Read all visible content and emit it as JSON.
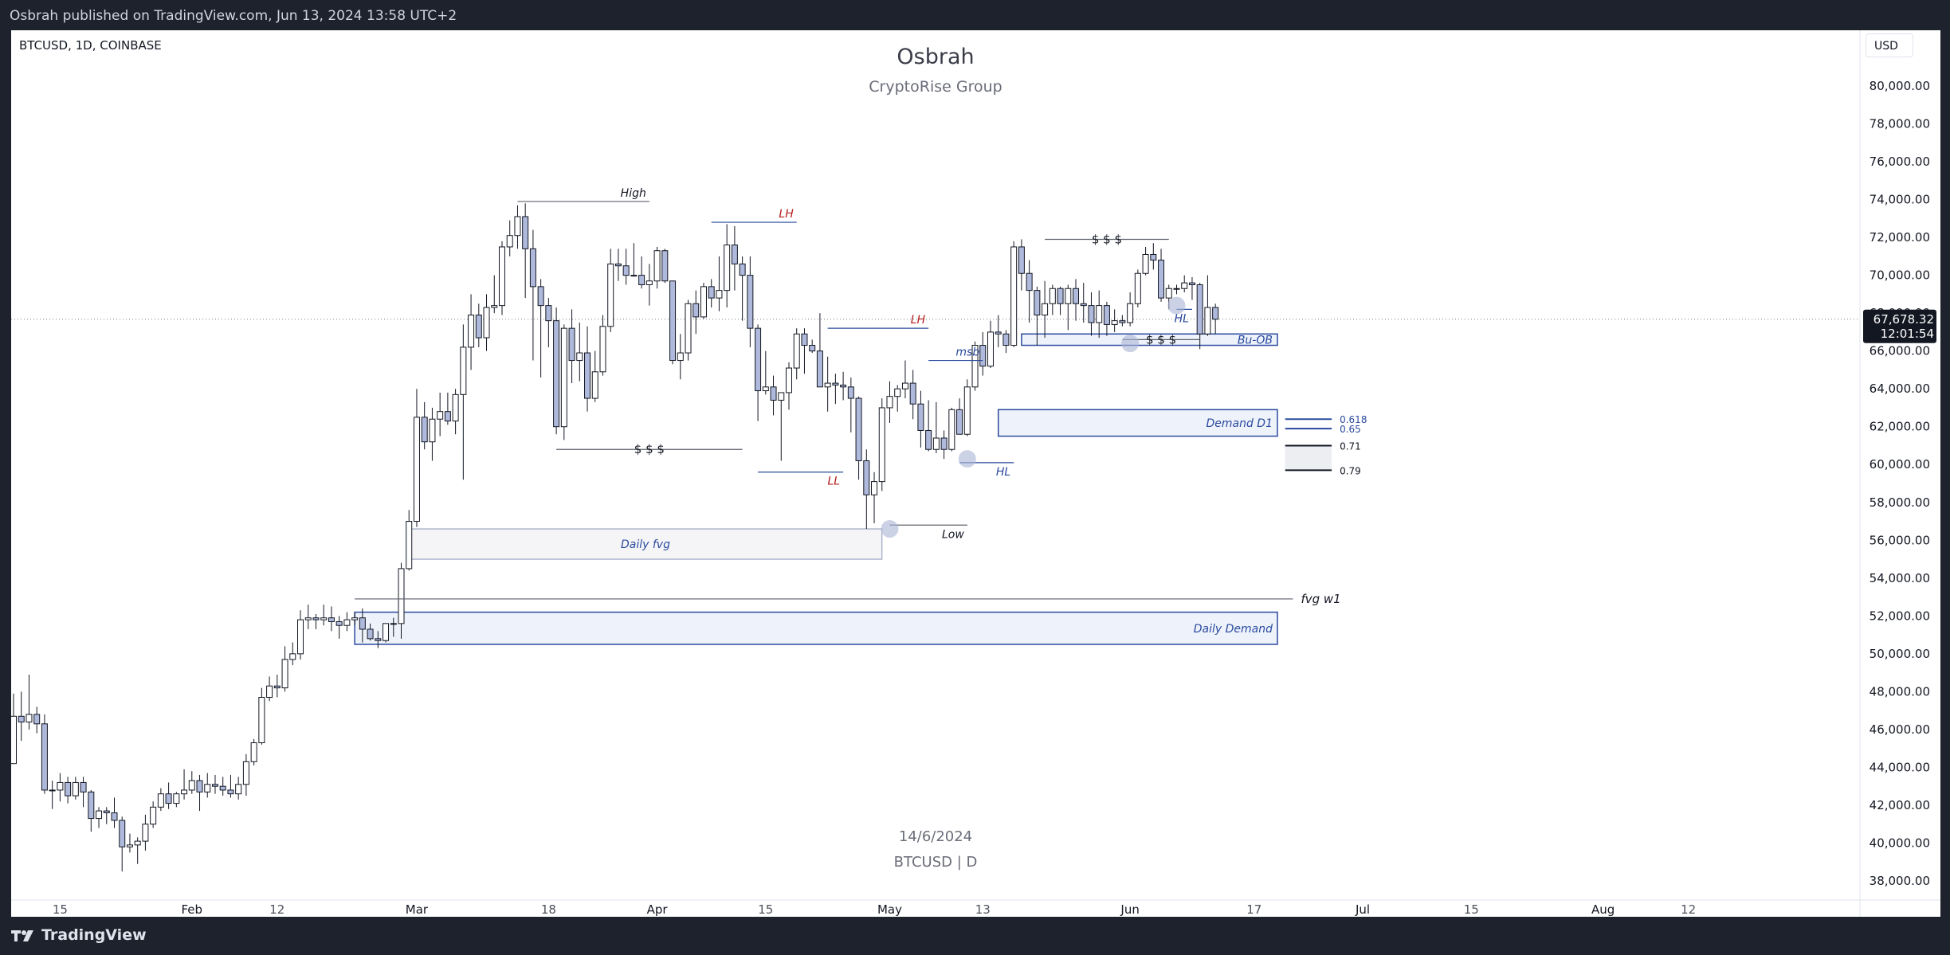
{
  "header": {
    "published": "Osbrah published on TradingView.com, Jun 13, 2024 13:58 UTC+2"
  },
  "footer": {
    "brand": "TradingView"
  },
  "chart_header": {
    "symbol_info": "BTCUSD, 1D, COINBASE",
    "currency": "USD"
  },
  "watermark": {
    "title": "Osbrah",
    "subtitle": "CryptoRise Group",
    "date": "14/6/2024",
    "symbol": "BTCUSD | D"
  },
  "price_axis_labels": [
    "80,000.00",
    "78,000.00",
    "76,000.00",
    "74,000.00",
    "72,000.00",
    "70,000.00",
    "68,000.00",
    "66,000.00",
    "64,000.00",
    "62,000.00",
    "60,000.00",
    "58,000.00",
    "56,000.00",
    "54,000.00",
    "52,000.00",
    "50,000.00",
    "48,000.00",
    "46,000.00",
    "44,000.00",
    "42,000.00",
    "40,000.00",
    "38,000.00"
  ],
  "price_levels": [
    80000,
    78000,
    76000,
    74000,
    72000,
    70000,
    68000,
    66000,
    64000,
    62000,
    60000,
    58000,
    56000,
    54000,
    52000,
    50000,
    48000,
    46000,
    44000,
    42000,
    40000,
    38000
  ],
  "time_axis": [
    {
      "label": "15",
      "date": "2024-01-15"
    },
    {
      "label": "Feb",
      "date": "2024-02-01"
    },
    {
      "label": "12",
      "date": "2024-02-12"
    },
    {
      "label": "Mar",
      "date": "2024-03-01"
    },
    {
      "label": "18",
      "date": "2024-03-18"
    },
    {
      "label": "Apr",
      "date": "2024-04-01"
    },
    {
      "label": "15",
      "date": "2024-04-15"
    },
    {
      "label": "May",
      "date": "2024-05-01"
    },
    {
      "label": "13",
      "date": "2024-05-13"
    },
    {
      "label": "Jun",
      "date": "2024-06-01"
    },
    {
      "label": "17",
      "date": "2024-06-17"
    },
    {
      "label": "Jul",
      "date": "2024-07-01"
    },
    {
      "label": "15",
      "date": "2024-07-15"
    },
    {
      "label": "Aug",
      "date": "2024-08-01"
    },
    {
      "label": "12",
      "date": "2024-08-12"
    }
  ],
  "last_price": {
    "value": "67,678.32",
    "countdown": "12:01:54",
    "price": 67678.32
  },
  "colors": {
    "zone_fill": "#eef2fb",
    "zone_border": "#2a4a9e",
    "label_blue": "#2a4a9e",
    "label_red": "#b71c1c",
    "candle_up": "#ffffff",
    "candle_down": "#aeb9dc",
    "candle_outline": "#131722"
  },
  "chart_data": {
    "type": "candlestick",
    "first_date": "2024-01-09",
    "y_range": [
      37200,
      81000
    ],
    "candles": [
      [
        44200,
        47900,
        44200,
        46700
      ],
      [
        46700,
        48000,
        45400,
        46400
      ],
      [
        46400,
        48900,
        46000,
        46800
      ],
      [
        46800,
        47200,
        45800,
        46300
      ],
      [
        46300,
        46800,
        42600,
        42800
      ],
      [
        42800,
        43300,
        41800,
        42800
      ],
      [
        42800,
        43700,
        42200,
        43200
      ],
      [
        43200,
        43500,
        42100,
        42500
      ],
      [
        42500,
        43500,
        42300,
        43200
      ],
      [
        43200,
        43500,
        41900,
        42700
      ],
      [
        42700,
        42800,
        40600,
        41300
      ],
      [
        41300,
        41900,
        40800,
        41700
      ],
      [
        41700,
        41900,
        41000,
        41600
      ],
      [
        41600,
        42400,
        40800,
        41200
      ],
      [
        41200,
        41400,
        38500,
        39800
      ],
      [
        39800,
        40500,
        39500,
        39900
      ],
      [
        39900,
        40300,
        38900,
        40100
      ],
      [
        40100,
        41500,
        39600,
        41000
      ],
      [
        41000,
        42200,
        40800,
        41900
      ],
      [
        41900,
        42900,
        41700,
        42600
      ],
      [
        42600,
        43200,
        41800,
        42100
      ],
      [
        42100,
        42700,
        41900,
        42600
      ],
      [
        42600,
        43900,
        42300,
        42800
      ],
      [
        42800,
        43800,
        42600,
        43300
      ],
      [
        43300,
        43600,
        41700,
        42700
      ],
      [
        42700,
        43700,
        42400,
        43100
      ],
      [
        43100,
        43600,
        42600,
        43000
      ],
      [
        43000,
        43500,
        42500,
        42800
      ],
      [
        42800,
        43600,
        42400,
        42600
      ],
      [
        42600,
        43500,
        42300,
        43100
      ],
      [
        43100,
        44700,
        42500,
        44300
      ],
      [
        44300,
        45500,
        44100,
        45300
      ],
      [
        45300,
        48200,
        45200,
        47700
      ],
      [
        47700,
        48800,
        47500,
        48300
      ],
      [
        48300,
        48900,
        47700,
        48200
      ],
      [
        48200,
        50400,
        48000,
        49700
      ],
      [
        49700,
        50600,
        49400,
        50000
      ],
      [
        50000,
        52300,
        49700,
        51800
      ],
      [
        51800,
        52600,
        51300,
        51900
      ],
      [
        51900,
        52100,
        51300,
        51800
      ],
      [
        51800,
        52600,
        51500,
        51900
      ],
      [
        51900,
        52500,
        51200,
        51700
      ],
      [
        51700,
        52000,
        50800,
        51500
      ],
      [
        51500,
        52200,
        51200,
        51800
      ],
      [
        51800,
        52200,
        51500,
        51900
      ],
      [
        51900,
        52400,
        50600,
        51300
      ],
      [
        51300,
        51600,
        50700,
        50800
      ],
      [
        50800,
        51200,
        50300,
        50700
      ],
      [
        50700,
        51600,
        50600,
        51600
      ],
      [
        51600,
        51900,
        50900,
        51600
      ],
      [
        51600,
        54800,
        50800,
        54500
      ],
      [
        54500,
        57600,
        54400,
        57000
      ],
      [
        57000,
        64000,
        56700,
        62500
      ],
      [
        62500,
        63300,
        60800,
        61200
      ],
      [
        61200,
        63000,
        60200,
        62400
      ],
      [
        62400,
        63800,
        61500,
        62800
      ],
      [
        62800,
        63800,
        62100,
        62300
      ],
      [
        62300,
        64000,
        61600,
        63700
      ],
      [
        63700,
        67400,
        59200,
        66200
      ],
      [
        66200,
        69000,
        65000,
        67900
      ],
      [
        67900,
        68500,
        66200,
        66700
      ],
      [
        66700,
        69000,
        66000,
        68300
      ],
      [
        68300,
        70000,
        68000,
        68400
      ],
      [
        68400,
        71800,
        67900,
        71500
      ],
      [
        71500,
        72900,
        71000,
        72100
      ],
      [
        72100,
        73700,
        71400,
        73100
      ],
      [
        73100,
        73800,
        68800,
        71400
      ],
      [
        71400,
        72400,
        65500,
        69400
      ],
      [
        69400,
        69800,
        64600,
        68400
      ],
      [
        68400,
        68800,
        66200,
        67600
      ],
      [
        67600,
        68300,
        61600,
        62000
      ],
      [
        62000,
        67400,
        61300,
        67200
      ],
      [
        67200,
        68200,
        64300,
        65500
      ],
      [
        65500,
        67500,
        64400,
        65900
      ],
      [
        65900,
        67300,
        62800,
        63500
      ],
      [
        63500,
        66000,
        63300,
        64900
      ],
      [
        64900,
        67900,
        64700,
        67300
      ],
      [
        67300,
        71400,
        67000,
        70600
      ],
      [
        70600,
        71400,
        69700,
        70500
      ],
      [
        70500,
        71400,
        69500,
        70000
      ],
      [
        70000,
        71700,
        70000,
        70000
      ],
      [
        70000,
        71000,
        69300,
        69500
      ],
      [
        69500,
        70600,
        68400,
        69700
      ],
      [
        69700,
        71500,
        69300,
        71300
      ],
      [
        71300,
        71400,
        69600,
        69700
      ],
      [
        69700,
        69700,
        65300,
        65500
      ],
      [
        65500,
        66900,
        64500,
        65900
      ],
      [
        65900,
        68700,
        65500,
        68500
      ],
      [
        68500,
        69200,
        66900,
        67800
      ],
      [
        67800,
        69600,
        67700,
        69400
      ],
      [
        69400,
        69800,
        68300,
        68800
      ],
      [
        68800,
        71000,
        68100,
        69200
      ],
      [
        69200,
        72700,
        68300,
        71600
      ],
      [
        71600,
        72600,
        69200,
        70600
      ],
      [
        70600,
        71000,
        67600,
        70000
      ],
      [
        70000,
        71000,
        66200,
        67200
      ],
      [
        67200,
        67400,
        62300,
        63900
      ],
      [
        63900,
        66000,
        63700,
        64100
      ],
      [
        64100,
        64700,
        62600,
        63400
      ],
      [
        63400,
        63800,
        60200,
        63800
      ],
      [
        63800,
        65400,
        62900,
        65100
      ],
      [
        65100,
        67200,
        64500,
        66900
      ],
      [
        66900,
        67200,
        64800,
        66300
      ],
      [
        66300,
        66600,
        65900,
        66000
      ],
      [
        66000,
        68000,
        64500,
        64100
      ],
      [
        64100,
        65700,
        62800,
        64300
      ],
      [
        64300,
        64800,
        63200,
        64200
      ],
      [
        64200,
        64900,
        63400,
        64100
      ],
      [
        64100,
        64600,
        61700,
        63500
      ],
      [
        63500,
        63600,
        59200,
        60200
      ],
      [
        60200,
        60800,
        56600,
        58400
      ],
      [
        58400,
        59600,
        56900,
        59100
      ],
      [
        59100,
        63500,
        58600,
        63000
      ],
      [
        63000,
        64400,
        62200,
        63600
      ],
      [
        63600,
        64200,
        62800,
        64000
      ],
      [
        64000,
        65500,
        63500,
        64300
      ],
      [
        64300,
        65000,
        62400,
        63200
      ],
      [
        63200,
        63900,
        60900,
        61800
      ],
      [
        61800,
        63400,
        60700,
        60800
      ],
      [
        60800,
        63300,
        60600,
        61400
      ],
      [
        61400,
        61800,
        60300,
        60800
      ],
      [
        60800,
        63000,
        60700,
        62900
      ],
      [
        62900,
        63500,
        61700,
        61600
      ],
      [
        61600,
        64500,
        61500,
        64100
      ],
      [
        64100,
        66500,
        63900,
        66300
      ],
      [
        66300,
        67000,
        64700,
        65200
      ],
      [
        65200,
        67600,
        65100,
        67000
      ],
      [
        67000,
        67900,
        66200,
        66900
      ],
      [
        66900,
        67100,
        65900,
        66300
      ],
      [
        66300,
        71800,
        66200,
        71500
      ],
      [
        71500,
        71900,
        69200,
        70100
      ],
      [
        70100,
        70800,
        67500,
        69200
      ],
      [
        69200,
        69400,
        66300,
        67900
      ],
      [
        67900,
        69700,
        66700,
        68500
      ],
      [
        68500,
        69500,
        67900,
        69300
      ],
      [
        69300,
        69400,
        67900,
        68500
      ],
      [
        68500,
        69500,
        67100,
        69300
      ],
      [
        69300,
        69800,
        67600,
        68500
      ],
      [
        68500,
        69600,
        67500,
        68400
      ],
      [
        68400,
        69100,
        66800,
        67500
      ],
      [
        67500,
        69200,
        66700,
        68400
      ],
      [
        68400,
        68600,
        66800,
        67400
      ],
      [
        67400,
        68200,
        67000,
        67600
      ],
      [
        67600,
        67900,
        67300,
        67500
      ],
      [
        67500,
        69100,
        67300,
        68500
      ],
      [
        68500,
        70300,
        68300,
        70100
      ],
      [
        70100,
        71500,
        70000,
        71100
      ],
      [
        71100,
        71700,
        70300,
        70800
      ],
      [
        70800,
        71400,
        68600,
        68800
      ],
      [
        68800,
        69500,
        68200,
        69300
      ],
      [
        69300,
        69500,
        69000,
        69300
      ],
      [
        69300,
        70000,
        69100,
        69600
      ],
      [
        69600,
        69900,
        68700,
        69500
      ],
      [
        69500,
        69600,
        66100,
        66900
      ],
      [
        66900,
        70000,
        66800,
        68300
      ],
      [
        68300,
        68500,
        66900,
        67678
      ]
    ]
  },
  "zones": [
    {
      "label": "Daily fvg",
      "top": 56600,
      "bottom": 55000,
      "from": "2024-02-29",
      "to": "2024-04-30"
    },
    {
      "label": "Daily Demand",
      "top": 52200,
      "bottom": 50500,
      "from": "2024-02-22",
      "to": "2024-06-20"
    },
    {
      "label": "Demand D1",
      "top": 62900,
      "bottom": 61500,
      "from": "2024-05-15",
      "to": "2024-06-20"
    },
    {
      "label": "Bu-OB",
      "top": 66900,
      "bottom": 66300,
      "from": "2024-05-18",
      "to": "2024-06-20"
    }
  ],
  "lines": [
    {
      "label": "High",
      "price": 73900,
      "from": "2024-03-14",
      "to": "2024-03-31",
      "color": "#5d606b"
    },
    {
      "label": "LH",
      "price": 72800,
      "from": "2024-04-08",
      "to": "2024-04-19",
      "color": "#2a4a9e"
    },
    {
      "label": "LH",
      "price": 67200,
      "from": "2024-04-23",
      "to": "2024-05-06",
      "color": "#2a4a9e"
    },
    {
      "label": "$ $ $",
      "price": 60800,
      "from": "2024-03-19",
      "to": "2024-04-12",
      "color": "#5d606b"
    },
    {
      "label": "LL",
      "price": 59600,
      "from": "2024-04-14",
      "to": "2024-04-25",
      "color": "#2a4a9e"
    },
    {
      "label": "Low",
      "price": 56800,
      "from": "2024-05-01",
      "to": "2024-05-11",
      "color": "#5d606b"
    },
    {
      "label": "msb",
      "price": 65500,
      "from": "2024-05-06",
      "to": "2024-05-13",
      "color": "#2a4a9e"
    },
    {
      "label": "HL",
      "price": 60100,
      "from": "2024-05-10",
      "to": "2024-05-17",
      "color": "#2a4a9e"
    },
    {
      "label": "$ $ $",
      "price": 71900,
      "from": "2024-05-21",
      "to": "2024-06-06",
      "color": "#5d606b"
    },
    {
      "label": "$ $ $",
      "price": 66600,
      "from": "2024-05-31",
      "to": "2024-06-10",
      "color": "#5d606b"
    },
    {
      "label": "HL",
      "price": 68200,
      "from": "2024-06-07",
      "to": "2024-06-09",
      "color": "#2a4a9e"
    },
    {
      "label": "fvg w1",
      "price": 52900,
      "from": "2024-02-22",
      "to": "2024-06-22",
      "color": "#5d606b"
    }
  ],
  "fib_levels": [
    {
      "label": "0.618",
      "price": 62400
    },
    {
      "label": "0.65",
      "price": 61900
    },
    {
      "label": "0.71",
      "price": 61000
    },
    {
      "label": "0.79",
      "price": 59700
    }
  ],
  "markers": [
    {
      "date": "2024-05-01",
      "price": 56600
    },
    {
      "date": "2024-05-11",
      "price": 60300
    },
    {
      "date": "2024-06-01",
      "price": 66400
    },
    {
      "date": "2024-06-07",
      "price": 68400
    }
  ]
}
